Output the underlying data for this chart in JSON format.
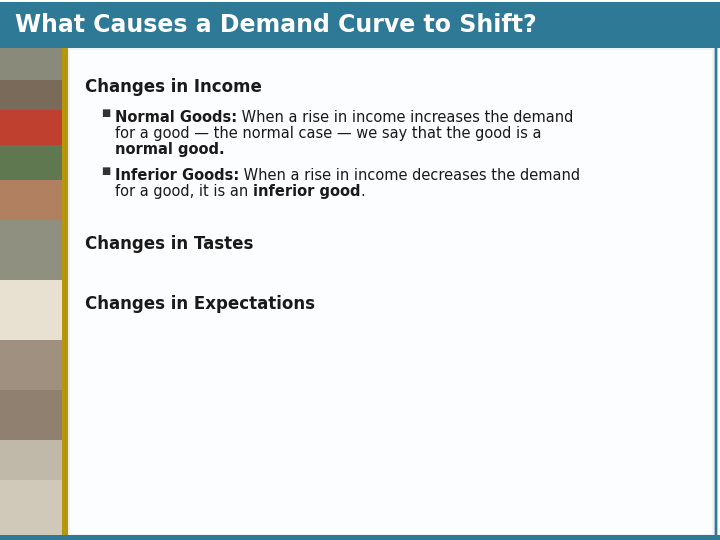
{
  "title": "What Causes a Demand Curve to Shift?",
  "title_bg_color": "#2E7A96",
  "title_text_color": "#FFFFFF",
  "slide_bg_color": "#FFFFFF",
  "left_border_color": "#B8960C",
  "teal_border_color": "#2E7A96",
  "heading1": "Changes in Income",
  "heading2": "Changes in Tastes",
  "heading3": "Changes in Expectations",
  "b1_bold": "Normal Goods:",
  "b1_rest_line1": " When a rise in income increases the demand",
  "b1_line2": "for a good — the normal case — we say that the good is a",
  "b1_line3_bold": "normal good",
  "b1_line3_end": ".",
  "b2_bold": "Inferior Goods:",
  "b2_rest_line1": " When a rise in income decreases the demand",
  "b2_line2_pre": "for a good, it is an ",
  "b2_line2_bold": "inferior good",
  "b2_line2_end": ".",
  "heading_fontsize": 12,
  "bullet_fontsize": 10.5,
  "title_fontsize": 17,
  "content_text_color": "#1a1a1a"
}
